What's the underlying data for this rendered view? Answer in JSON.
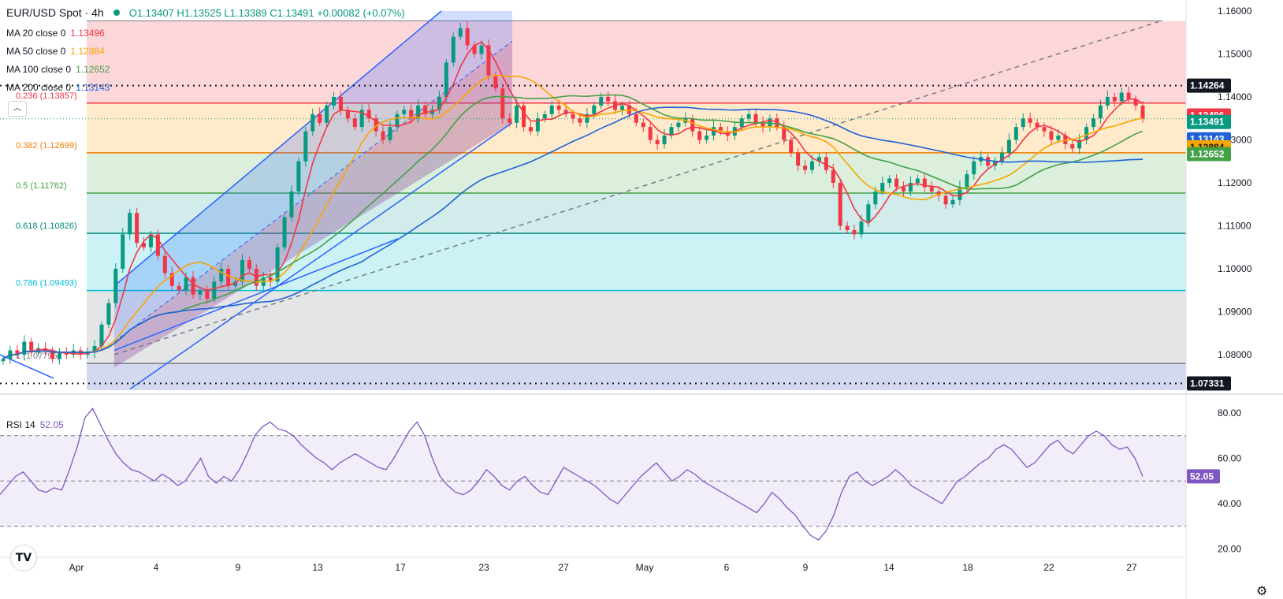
{
  "header": {
    "symbol": "EUR/USD Spot · 4h",
    "ohlc": "O1.13407 H1.13525 L1.13389 C1.13491 +0.00082 (+0.07%)"
  },
  "indicators": [
    {
      "label": "MA 20 close 0",
      "value": "1.13496",
      "color": "#f23645"
    },
    {
      "label": "MA 50 close 0",
      "value": "1.12884",
      "color": "#f7a600"
    },
    {
      "label": "MA 100 close 0",
      "value": "1.12652",
      "color": "#43a047"
    },
    {
      "label": "MA 200 close 0",
      "value": "1.13143",
      "color": "#1e63d6"
    }
  ],
  "rsi": {
    "label": "RSI 14",
    "value": "52.05"
  },
  "chart_data": {
    "type": "candlestick",
    "title": "EUR/USD Spot · 4h",
    "ylim": [
      1.07,
      1.16
    ],
    "y_ticks": [
      "1.16000",
      "1.15000",
      "1.14000",
      "1.13000",
      "1.12000",
      "1.11000",
      "1.10000",
      "1.09000",
      "1.08000"
    ],
    "x_ticks": [
      "Apr",
      "4",
      "9",
      "13",
      "17",
      "23",
      "27",
      "May",
      "6",
      "9",
      "14",
      "18",
      "22",
      "27"
    ],
    "price_tags": [
      {
        "value": "1.14264",
        "bg": "#131722",
        "fg": "#ffffff"
      },
      {
        "value": "1.13496",
        "bg": "#f23645",
        "fg": "#ffffff"
      },
      {
        "value": "1.13491",
        "bg": "#089981",
        "fg": "#ffffff"
      },
      {
        "value": "1.13143",
        "bg": "#1e63d6",
        "fg": "#ffffff"
      },
      {
        "value": "1.12884",
        "bg": "#f7a600",
        "fg": "#131722"
      },
      {
        "value": "1.12652",
        "bg": "#43a047",
        "fg": "#ffffff"
      },
      {
        "value": "1.07331",
        "bg": "#131722",
        "fg": "#ffffff"
      }
    ],
    "fib_levels": [
      {
        "label": "0.236 (1.13857)",
        "value": 1.13857,
        "color": "#f23645"
      },
      {
        "label": "0.382 (1.12699)",
        "value": 1.12699,
        "color": "#f57c00"
      },
      {
        "label": "0.5 (1.11762)",
        "value": 1.11762,
        "color": "#43a047"
      },
      {
        "label": "0.618 (1.10826)",
        "value": 1.10826,
        "color": "#00897b"
      },
      {
        "label": "0.786 (1.09493)",
        "value": 1.09493,
        "color": "#00bcd4"
      },
      {
        "label": "1 (1.07795)",
        "value": 1.07795,
        "color": "#787b86"
      }
    ],
    "horizontal_lines": [
      1.14264,
      1.07331
    ],
    "close_series": [
      1.079,
      1.081,
      1.08,
      1.083,
      1.0805,
      1.0815,
      1.081,
      1.079,
      1.0805,
      1.08,
      1.081,
      1.08,
      1.0805,
      1.082,
      1.087,
      1.092,
      1.1,
      1.108,
      1.113,
      1.106,
      1.105,
      1.108,
      1.103,
      1.099,
      1.096,
      1.095,
      1.098,
      1.094,
      1.095,
      1.093,
      1.097,
      1.1,
      1.096,
      1.097,
      1.102,
      1.1,
      1.096,
      1.098,
      1.097,
      1.105,
      1.112,
      1.118,
      1.125,
      1.132,
      1.136,
      1.134,
      1.138,
      1.14,
      1.137,
      1.135,
      1.133,
      1.137,
      1.135,
      1.132,
      1.13,
      1.133,
      1.136,
      1.137,
      1.135,
      1.138,
      1.136,
      1.137,
      1.14,
      1.148,
      1.154,
      1.156,
      1.152,
      1.15,
      1.152,
      1.145,
      1.142,
      1.135,
      1.134,
      1.138,
      1.133,
      1.132,
      1.135,
      1.136,
      1.138,
      1.137,
      1.136,
      1.135,
      1.134,
      1.136,
      1.138,
      1.14,
      1.139,
      1.137,
      1.138,
      1.136,
      1.134,
      1.133,
      1.13,
      1.129,
      1.131,
      1.133,
      1.134,
      1.135,
      1.132,
      1.13,
      1.131,
      1.133,
      1.132,
      1.131,
      1.133,
      1.135,
      1.136,
      1.134,
      1.133,
      1.135,
      1.133,
      1.13,
      1.127,
      1.124,
      1.123,
      1.125,
      1.126,
      1.123,
      1.12,
      1.11,
      1.109,
      1.108,
      1.111,
      1.115,
      1.118,
      1.12,
      1.121,
      1.119,
      1.118,
      1.12,
      1.121,
      1.119,
      1.118,
      1.117,
      1.115,
      1.116,
      1.119,
      1.122,
      1.125,
      1.126,
      1.124,
      1.125,
      1.127,
      1.13,
      1.133,
      1.135,
      1.134,
      1.133,
      1.132,
      1.13,
      1.131,
      1.129,
      1.128,
      1.13,
      1.133,
      1.135,
      1.138,
      1.14,
      1.139,
      1.141,
      1.1395,
      1.138,
      1.1349
    ],
    "rsi_series": [
      44,
      48,
      52,
      54,
      50,
      46,
      45,
      47,
      46,
      55,
      65,
      78,
      82,
      75,
      68,
      62,
      58,
      55,
      54,
      52,
      50,
      53,
      51,
      48,
      50,
      55,
      60,
      52,
      49,
      52,
      50,
      55,
      62,
      70,
      74,
      76,
      73,
      72,
      70,
      66,
      63,
      60,
      58,
      55,
      58,
      60,
      62,
      60,
      58,
      56,
      55,
      60,
      66,
      72,
      76,
      70,
      60,
      52,
      48,
      45,
      44,
      46,
      50,
      55,
      52,
      48,
      46,
      50,
      52,
      48,
      45,
      44,
      50,
      56,
      54,
      52,
      50,
      48,
      45,
      42,
      40,
      44,
      48,
      52,
      55,
      58,
      54,
      50,
      52,
      55,
      53,
      50,
      48,
      46,
      44,
      42,
      40,
      38,
      36,
      40,
      45,
      42,
      38,
      35,
      30,
      26,
      24,
      28,
      35,
      45,
      52,
      54,
      50,
      48,
      50,
      52,
      55,
      52,
      48,
      46,
      44,
      42,
      40,
      45,
      50,
      52,
      55,
      58,
      60,
      64,
      66,
      64,
      60,
      56,
      58,
      62,
      66,
      68,
      64,
      62,
      66,
      70,
      72,
      70,
      66,
      64,
      65,
      60,
      52
    ],
    "rsi_ylim": [
      17,
      88
    ],
    "rsi_ticks": [
      "80.00",
      "60.00",
      "40.00",
      "20.00"
    ],
    "rsi_bands": [
      70,
      50,
      30
    ]
  },
  "icons": [
    "collapse-chevron-icon",
    "tradingview-logo-icon",
    "settings-gear-icon"
  ]
}
